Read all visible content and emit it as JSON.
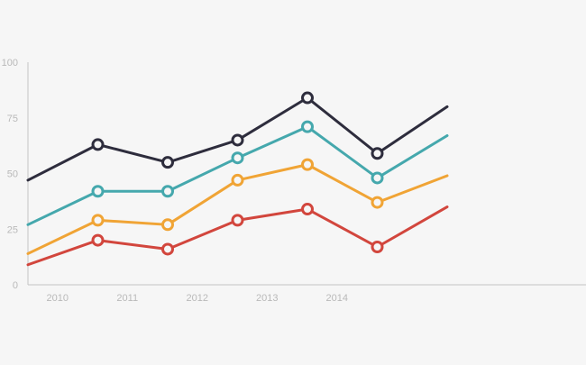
{
  "chart_data": {
    "type": "line",
    "x": [
      2009.5,
      2010.5,
      2011.5,
      2012.5,
      2013.5,
      2014.5,
      2015.5
    ],
    "x_tick_labels": [
      "2010",
      "2011",
      "2012",
      "2013",
      "2014"
    ],
    "y_tick_labels": [
      "0",
      "25",
      "50",
      "75",
      "100"
    ],
    "ylim": [
      0,
      100
    ],
    "grid": false,
    "series": [
      {
        "color": "#2e2d3d",
        "values": [
          47,
          63,
          55,
          65,
          84,
          59,
          80
        ]
      },
      {
        "color": "#45a8ad",
        "values": [
          27,
          42,
          42,
          57,
          71,
          48,
          67
        ]
      },
      {
        "color": "#f0a435",
        "values": [
          14,
          29,
          27,
          47,
          54,
          37,
          49
        ]
      },
      {
        "color": "#d2463d",
        "values": [
          9,
          20,
          16,
          29,
          34,
          17,
          35
        ]
      }
    ],
    "colors": {
      "axis": "#c4c4c4",
      "tick_text": "#b9b9b9",
      "marker_fill": "#f6f6f6"
    }
  }
}
